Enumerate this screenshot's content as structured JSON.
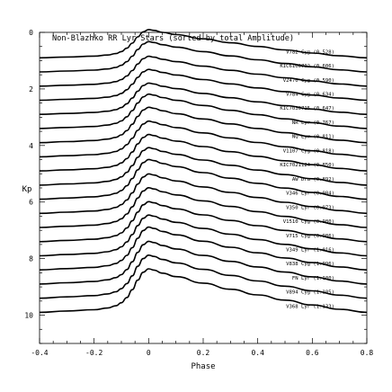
{
  "chart_data": {
    "type": "line",
    "title": "Non-Blazhko RR Lyr Stars (sorted by total Amplitude)",
    "xlabel": "Phase",
    "ylabel": "Kp",
    "xlim": [
      -0.4,
      0.8
    ],
    "ylim": [
      11,
      0
    ],
    "y_inverted": true,
    "x_ticks": [
      -0.4,
      -0.2,
      0,
      0.2,
      0.4,
      0.6,
      0.8
    ],
    "x_tick_labels": [
      "-0.4",
      "-0.2",
      "0",
      "0.2",
      "0.4",
      "0.6",
      "0.8"
    ],
    "y_ticks": [
      0,
      2,
      4,
      6,
      8,
      10
    ],
    "y_tick_labels": [
      "0",
      "2",
      "4",
      "6",
      "8",
      "10"
    ],
    "grid": false,
    "light_curve_shape": {
      "x": [
        -0.4,
        -0.3,
        -0.2,
        -0.15,
        -0.12,
        -0.1,
        -0.08,
        -0.06,
        -0.04,
        -0.02,
        0,
        0.02,
        0.05,
        0.1,
        0.2,
        0.3,
        0.4,
        0.5,
        0.6,
        0.7,
        0.8
      ],
      "relative_mag": [
        0,
        -0.03,
        -0.06,
        -0.1,
        -0.15,
        -0.22,
        -0.34,
        -0.52,
        -0.74,
        -0.92,
        -1.0,
        -0.97,
        -0.9,
        -0.82,
        -0.67,
        -0.53,
        -0.4,
        -0.28,
        -0.17,
        -0.07,
        0
      ]
    },
    "series": [
      {
        "name": "V782 Cyg (0.528)",
        "baseline": 0.9,
        "amplitude": 0.53
      },
      {
        "name": "KIC6100702 (0.606)",
        "baseline": 1.4,
        "amplitude": 0.61
      },
      {
        "name": "V2470 Cyg (0.590)",
        "baseline": 1.9,
        "amplitude": 0.59
      },
      {
        "name": "V784 Cyg (0.634)",
        "baseline": 2.4,
        "amplitude": 0.63
      },
      {
        "name": "KIC7030715 (0.647)",
        "baseline": 2.9,
        "amplitude": 0.65
      },
      {
        "name": "NR Lyr (0.767)",
        "baseline": 3.4,
        "amplitude": 0.77
      },
      {
        "name": "NQ Lyr (0.811)",
        "baseline": 3.9,
        "amplitude": 0.81
      },
      {
        "name": "V1107 Cyg (0.818)",
        "baseline": 4.4,
        "amplitude": 0.82
      },
      {
        "name": "KIC7021124 (0.850)",
        "baseline": 4.9,
        "amplitude": 0.85
      },
      {
        "name": "AW Dra (0.892)",
        "baseline": 5.4,
        "amplitude": 0.89
      },
      {
        "name": "V346 Lyr (0.984)",
        "baseline": 5.9,
        "amplitude": 0.98
      },
      {
        "name": "V350 Lyr (0.973)",
        "baseline": 6.4,
        "amplitude": 0.97
      },
      {
        "name": "V1510 Cyg (0.980)",
        "baseline": 6.9,
        "amplitude": 0.98
      },
      {
        "name": "V715 Cyg (0.986)",
        "baseline": 7.4,
        "amplitude": 0.99
      },
      {
        "name": "V349 Lyr (1.016)",
        "baseline": 7.9,
        "amplitude": 1.02
      },
      {
        "name": "V838 Cyg (1.096)",
        "baseline": 8.4,
        "amplitude": 1.1
      },
      {
        "name": "FN Lyr (1.100)",
        "baseline": 8.9,
        "amplitude": 1.1
      },
      {
        "name": "V894 Cyg (1.105)",
        "baseline": 9.4,
        "amplitude": 1.11
      },
      {
        "name": "V368 Lyr (1.133)",
        "baseline": 9.9,
        "amplitude": 1.13
      }
    ]
  }
}
